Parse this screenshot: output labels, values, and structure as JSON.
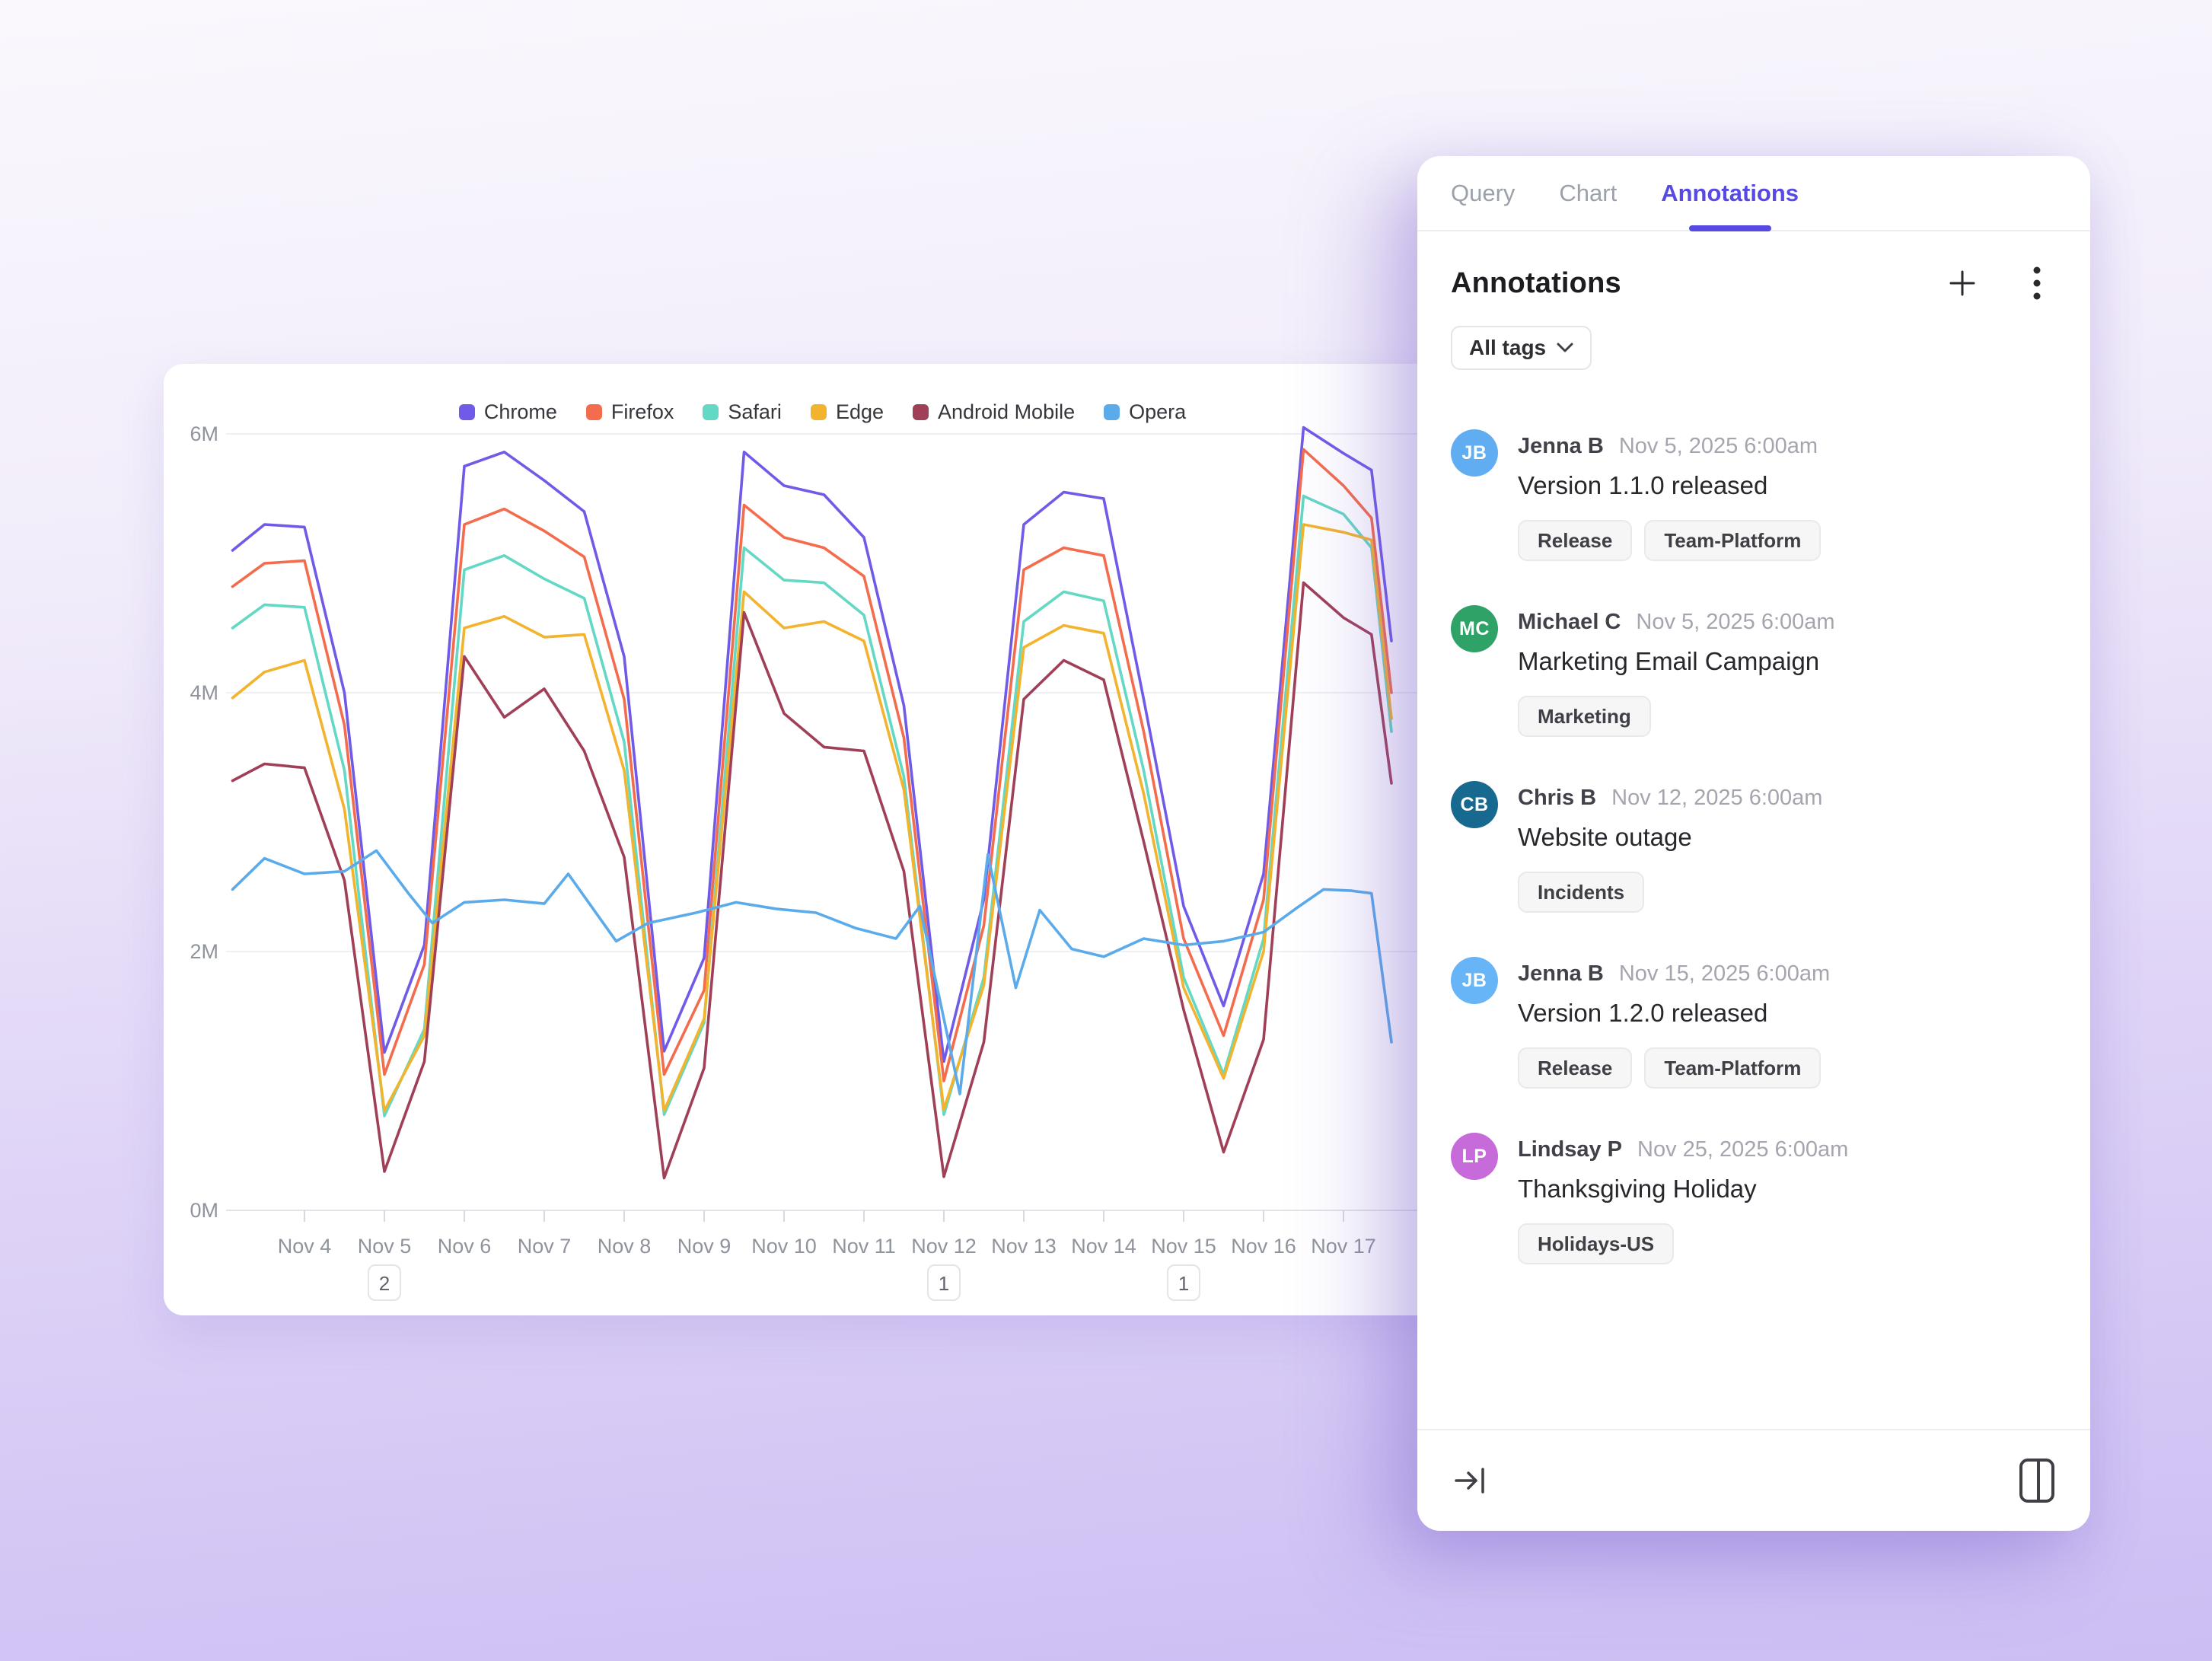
{
  "colors": {
    "accent": "#564ae3",
    "inactive_tab": "#9ba1aa",
    "background_top": "#faf8fd",
    "background_bottom": "#ccbdf3"
  },
  "panel": {
    "tabs": [
      {
        "label": "Query",
        "active": false
      },
      {
        "label": "Chart",
        "active": false
      },
      {
        "label": "Annotations",
        "active": true
      }
    ],
    "title": "Annotations",
    "header_icons": [
      "plus-icon",
      "kebab-menu-icon"
    ],
    "filter_label": "All tags",
    "footer_icons": [
      "collapse-to-right-icon",
      "split-panel-icon"
    ],
    "items": [
      {
        "initials": "JB",
        "avatar_color": "#61adf2",
        "name": "Jenna B",
        "timestamp": "Nov 5, 2025 6:00am",
        "title": "Version 1.1.0 released",
        "tags": [
          "Release",
          "Team-Platform"
        ]
      },
      {
        "initials": "MC",
        "avatar_color": "#2fa267",
        "name": "Michael C",
        "timestamp": "Nov 5, 2025 6:00am",
        "title": "Marketing Email Campaign",
        "tags": [
          "Marketing"
        ]
      },
      {
        "initials": "CB",
        "avatar_color": "#17698f",
        "name": "Chris B",
        "timestamp": "Nov 12, 2025 6:00am",
        "title": "Website outage",
        "tags": [
          "Incidents"
        ]
      },
      {
        "initials": "JB",
        "avatar_color": "#67b5f6",
        "name": "Jenna B",
        "timestamp": "Nov 15, 2025 6:00am",
        "title": "Version 1.2.0 released",
        "tags": [
          "Release",
          "Team-Platform"
        ]
      },
      {
        "initials": "LP",
        "avatar_color": "#c76bda",
        "name": "Lindsay P",
        "timestamp": "Nov 25, 2025 6:00am",
        "title": "Thanksgiving Holiday",
        "tags": [
          "Holidays-US"
        ]
      }
    ]
  },
  "chart_data": {
    "type": "line",
    "title": "",
    "xlabel": "",
    "ylabel": "",
    "y_unit": "M",
    "ylim": [
      0,
      6.4
    ],
    "grid": true,
    "legend_position": "top",
    "x_axis_note": "x values are days of November 2025; fractional = intraday samples",
    "y_ticks": [
      {
        "value": 0,
        "label": "0M"
      },
      {
        "value": 2,
        "label": "2M"
      },
      {
        "value": 4,
        "label": "4M"
      },
      {
        "value": 6,
        "label": "6M"
      }
    ],
    "x_ticks": [
      {
        "day": 4,
        "label": "Nov 4"
      },
      {
        "day": 5,
        "label": "Nov 5"
      },
      {
        "day": 6,
        "label": "Nov 6"
      },
      {
        "day": 7,
        "label": "Nov 7"
      },
      {
        "day": 8,
        "label": "Nov 8"
      },
      {
        "day": 9,
        "label": "Nov 9"
      },
      {
        "day": 10,
        "label": "Nov 10"
      },
      {
        "day": 11,
        "label": "Nov 11"
      },
      {
        "day": 12,
        "label": "Nov 12"
      },
      {
        "day": 13,
        "label": "Nov 13"
      },
      {
        "day": 14,
        "label": "Nov 14"
      },
      {
        "day": 15,
        "label": "Nov 15"
      },
      {
        "day": 16,
        "label": "Nov 16"
      },
      {
        "day": 17,
        "label": "Nov 17"
      }
    ],
    "annotation_badges": [
      {
        "day": 5,
        "label": "2"
      },
      {
        "day": 12,
        "label": "1"
      },
      {
        "day": 15,
        "label": "1"
      }
    ],
    "series": [
      {
        "name": "Chrome",
        "color": "#6f5be8",
        "x": [
          3.1,
          3.5,
          4,
          4.5,
          5,
          5.5,
          6,
          6.5,
          7,
          7.5,
          8,
          8.5,
          9,
          9.5,
          10,
          10.5,
          11,
          11.5,
          12,
          12.5,
          13,
          13.5,
          14,
          14.5,
          15,
          15.5,
          16,
          16.5,
          17,
          17.35,
          17.6
        ],
        "y": [
          5.1,
          5.3,
          5.28,
          4.0,
          1.22,
          2.05,
          5.75,
          5.86,
          5.64,
          5.4,
          4.28,
          1.23,
          1.95,
          5.86,
          5.6,
          5.53,
          5.2,
          3.9,
          1.15,
          2.4,
          5.3,
          5.55,
          5.5,
          3.95,
          2.35,
          1.58,
          2.6,
          6.05,
          5.85,
          5.72,
          4.4
        ]
      },
      {
        "name": "Firefox",
        "color": "#f46c4e",
        "x": [
          3.1,
          3.5,
          4,
          4.5,
          5,
          5.5,
          6,
          6.5,
          7,
          7.5,
          8,
          8.5,
          9,
          9.5,
          10,
          10.5,
          11,
          11.5,
          12,
          12.5,
          13,
          13.5,
          14,
          14.5,
          15,
          15.5,
          16,
          16.5,
          17,
          17.35,
          17.6
        ],
        "y": [
          4.82,
          5.0,
          5.02,
          3.75,
          1.05,
          1.9,
          5.3,
          5.42,
          5.25,
          5.05,
          3.95,
          1.05,
          1.7,
          5.45,
          5.2,
          5.12,
          4.9,
          3.65,
          1.0,
          2.2,
          4.95,
          5.12,
          5.06,
          3.7,
          2.1,
          1.35,
          2.4,
          5.88,
          5.6,
          5.35,
          4.0
        ]
      },
      {
        "name": "Safari",
        "color": "#63d8c5",
        "x": [
          3.1,
          3.5,
          4,
          4.5,
          5,
          5.5,
          6,
          6.5,
          7,
          7.5,
          8,
          8.5,
          9,
          9.5,
          10,
          10.5,
          11,
          11.5,
          12,
          12.5,
          13,
          13.5,
          14,
          14.5,
          15,
          15.5,
          16,
          16.5,
          17,
          17.35,
          17.6
        ],
        "y": [
          4.5,
          4.68,
          4.66,
          3.4,
          0.73,
          1.4,
          4.95,
          5.06,
          4.88,
          4.73,
          3.62,
          0.74,
          1.45,
          5.12,
          4.87,
          4.85,
          4.6,
          3.35,
          0.74,
          1.8,
          4.55,
          4.78,
          4.71,
          3.4,
          1.8,
          1.05,
          2.1,
          5.52,
          5.38,
          5.12,
          3.7
        ]
      },
      {
        "name": "Edge",
        "color": "#f2b32e",
        "x": [
          3.1,
          3.5,
          4,
          4.5,
          5,
          5.5,
          6,
          6.5,
          7,
          7.5,
          8,
          8.5,
          9,
          9.5,
          10,
          10.5,
          11,
          11.5,
          12,
          12.5,
          13,
          13.5,
          14,
          14.5,
          15,
          15.5,
          16,
          16.5,
          17,
          17.35,
          17.6
        ],
        "y": [
          3.96,
          4.16,
          4.25,
          3.1,
          0.77,
          1.35,
          4.5,
          4.59,
          4.43,
          4.45,
          3.4,
          0.77,
          1.48,
          4.78,
          4.5,
          4.55,
          4.4,
          3.25,
          0.78,
          1.74,
          4.35,
          4.52,
          4.46,
          3.22,
          1.72,
          1.02,
          2.0,
          5.3,
          5.24,
          5.18,
          3.8
        ]
      },
      {
        "name": "Android Mobile",
        "color": "#a04058",
        "x": [
          3.1,
          3.5,
          4,
          4.5,
          5,
          5.5,
          6,
          6.5,
          7,
          7.5,
          8,
          8.5,
          9,
          9.5,
          10,
          10.5,
          11,
          11.5,
          12,
          12.5,
          13,
          13.5,
          14,
          14.5,
          15,
          15.5,
          16,
          16.5,
          17,
          17.35,
          17.6
        ],
        "y": [
          3.32,
          3.45,
          3.42,
          2.55,
          0.3,
          1.15,
          4.28,
          3.81,
          4.03,
          3.55,
          2.73,
          0.25,
          1.1,
          4.62,
          3.84,
          3.58,
          3.55,
          2.62,
          0.26,
          1.3,
          3.95,
          4.25,
          4.1,
          2.85,
          1.55,
          0.45,
          1.32,
          4.85,
          4.58,
          4.45,
          3.3
        ]
      },
      {
        "name": "Opera",
        "color": "#5babeb",
        "x": [
          3.1,
          3.5,
          4,
          4.5,
          4.9,
          5.3,
          5.6,
          6,
          6.5,
          7,
          7.3,
          7.9,
          8.3,
          8.9,
          9.4,
          9.9,
          10.4,
          10.9,
          11.4,
          11.7,
          12.2,
          12.55,
          12.9,
          13.2,
          13.6,
          14,
          14.5,
          15,
          15.5,
          16,
          16.4,
          16.75,
          17.1,
          17.35,
          17.6
        ],
        "y": [
          2.48,
          2.72,
          2.6,
          2.62,
          2.78,
          2.45,
          2.22,
          2.38,
          2.4,
          2.37,
          2.6,
          2.08,
          2.22,
          2.3,
          2.38,
          2.33,
          2.3,
          2.18,
          2.1,
          2.35,
          0.9,
          2.75,
          1.72,
          2.32,
          2.02,
          1.96,
          2.1,
          2.05,
          2.08,
          2.15,
          2.33,
          2.48,
          2.47,
          2.45,
          1.3
        ]
      }
    ]
  }
}
